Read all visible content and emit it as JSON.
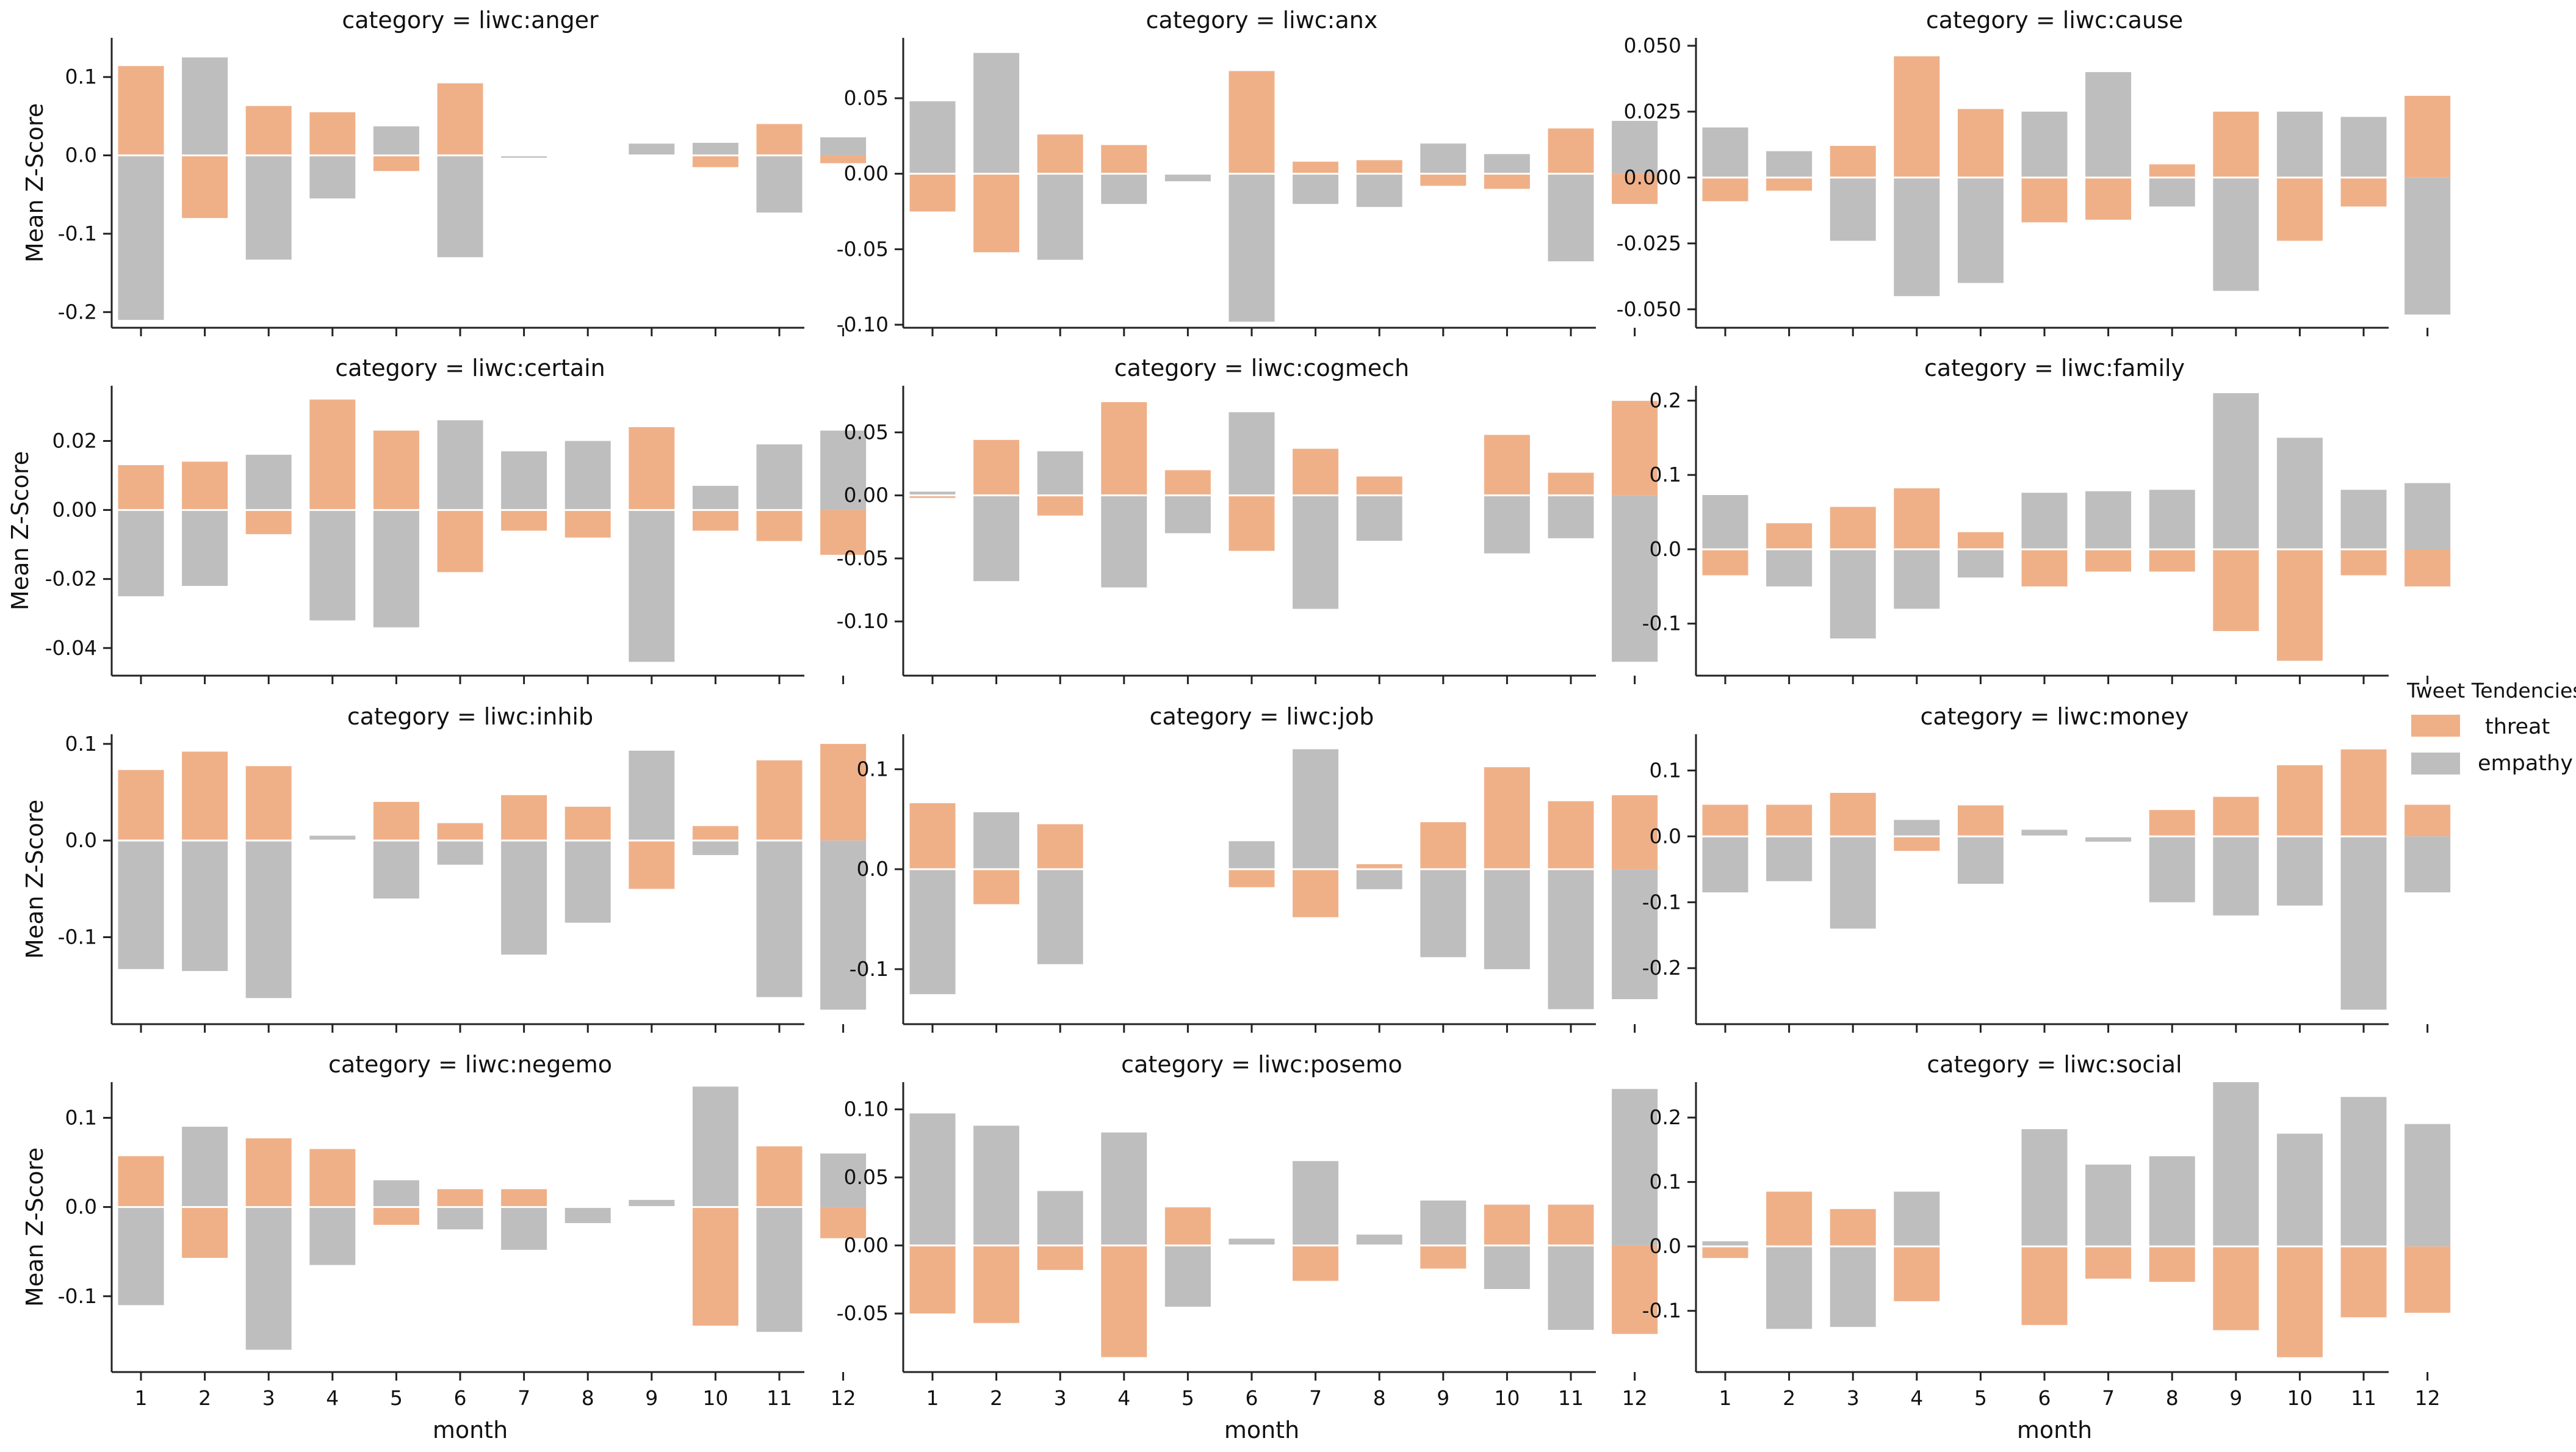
{
  "legend": {
    "title": "Tweet Tendencies",
    "items": [
      {
        "label": "threat",
        "color": "#EFB088"
      },
      {
        "label": "empathy",
        "color": "#BEBEBE"
      }
    ]
  },
  "x_label": "month",
  "y_label": "Mean Z-Score",
  "chart_data": [
    {
      "type": "bar",
      "title": "category = liwc:anger",
      "categories": [
        1,
        2,
        3,
        4,
        5,
        6,
        7,
        8,
        9,
        10,
        11,
        12
      ],
      "ylim": [
        -0.22,
        0.15
      ],
      "yticks": [
        -0.2,
        -0.1,
        0.0,
        0.1
      ],
      "ytick_labels": [
        "-0.2",
        "-0.1",
        "0.0",
        "0.1"
      ],
      "series": [
        {
          "name": "threat",
          "values": [
            0.114,
            -0.08,
            0.063,
            0.055,
            -0.02,
            0.092,
            0,
            0,
            0,
            -0.015,
            0.04,
            -0.01
          ]
        },
        {
          "name": "empathy",
          "values": [
            -0.21,
            0.125,
            -0.133,
            -0.055,
            0.037,
            -0.13,
            -0.003,
            0,
            0.015,
            0.016,
            -0.073,
            0.023
          ]
        }
      ]
    },
    {
      "type": "bar",
      "title": "category = liwc:anx",
      "categories": [
        1,
        2,
        3,
        4,
        5,
        6,
        7,
        8,
        9,
        10,
        11,
        12
      ],
      "ylim": [
        -0.102,
        0.09
      ],
      "yticks": [
        -0.1,
        -0.05,
        0.0,
        0.05
      ],
      "ytick_labels": [
        "-0.10",
        "-0.05",
        "0.00",
        "0.05"
      ],
      "series": [
        {
          "name": "threat",
          "values": [
            -0.025,
            -0.052,
            0.026,
            0.019,
            0,
            0.068,
            0.008,
            0.009,
            -0.008,
            -0.01,
            0.03,
            -0.02
          ]
        },
        {
          "name": "empathy",
          "values": [
            0.048,
            0.08,
            -0.057,
            -0.02,
            -0.005,
            -0.098,
            -0.02,
            -0.022,
            0.02,
            0.013,
            -0.058,
            0.035
          ]
        }
      ]
    },
    {
      "type": "bar",
      "title": "category = liwc:cause",
      "categories": [
        1,
        2,
        3,
        4,
        5,
        6,
        7,
        8,
        9,
        10,
        11,
        12
      ],
      "ylim": [
        -0.057,
        0.053
      ],
      "yticks": [
        -0.05,
        -0.025,
        0.0,
        0.025,
        0.05
      ],
      "ytick_labels": [
        "-0.050",
        "-0.025",
        "0.000",
        "0.025",
        "0.050"
      ],
      "series": [
        {
          "name": "threat",
          "values": [
            -0.009,
            -0.005,
            0.012,
            0.046,
            0.026,
            -0.017,
            -0.016,
            0.005,
            0.025,
            -0.024,
            -0.011,
            0.031
          ]
        },
        {
          "name": "empathy",
          "values": [
            0.019,
            0.01,
            -0.024,
            -0.045,
            -0.04,
            0.025,
            0.04,
            -0.011,
            -0.043,
            0.025,
            0.023,
            -0.052
          ]
        }
      ]
    },
    {
      "type": "bar",
      "title": "category = liwc:certain",
      "categories": [
        1,
        2,
        3,
        4,
        5,
        6,
        7,
        8,
        9,
        10,
        11,
        12
      ],
      "ylim": [
        -0.048,
        0.036
      ],
      "yticks": [
        -0.04,
        -0.02,
        0.0,
        0.02
      ],
      "ytick_labels": [
        "-0.04",
        "-0.02",
        "0.00",
        "0.02"
      ],
      "series": [
        {
          "name": "threat",
          "values": [
            0.013,
            0.014,
            -0.007,
            0.032,
            0.023,
            -0.018,
            -0.006,
            -0.008,
            0.024,
            -0.006,
            -0.009,
            -0.013
          ]
        },
        {
          "name": "empathy",
          "values": [
            -0.025,
            -0.022,
            0.016,
            -0.032,
            -0.034,
            0.026,
            0.017,
            0.02,
            -0.044,
            0.007,
            0.019,
            0.023
          ]
        }
      ]
    },
    {
      "type": "bar",
      "title": "category = liwc:cogmech",
      "categories": [
        1,
        2,
        3,
        4,
        5,
        6,
        7,
        8,
        9,
        10,
        11,
        12
      ],
      "ylim": [
        -0.143,
        0.087
      ],
      "yticks": [
        -0.1,
        -0.05,
        0.0,
        0.05
      ],
      "ytick_labels": [
        "-0.10",
        "-0.05",
        "0.00",
        "0.05"
      ],
      "series": [
        {
          "name": "threat",
          "values": [
            -0.002,
            0.044,
            -0.016,
            0.074,
            0.02,
            -0.044,
            0.037,
            0.015,
            0,
            0.048,
            0.018,
            0.075
          ]
        },
        {
          "name": "empathy",
          "values": [
            0.003,
            -0.068,
            0.035,
            -0.073,
            -0.03,
            0.066,
            -0.09,
            -0.036,
            0,
            -0.046,
            -0.034,
            -0.132
          ]
        }
      ]
    },
    {
      "type": "bar",
      "title": "category = liwc:family",
      "categories": [
        1,
        2,
        3,
        4,
        5,
        6,
        7,
        8,
        9,
        10,
        11,
        12
      ],
      "ylim": [
        -0.17,
        0.22
      ],
      "yticks": [
        -0.1,
        0.0,
        0.1,
        0.2
      ],
      "ytick_labels": [
        "-0.1",
        "0.0",
        "0.1",
        "0.2"
      ],
      "series": [
        {
          "name": "threat",
          "values": [
            -0.035,
            0.035,
            0.057,
            0.082,
            0.023,
            -0.05,
            -0.03,
            -0.03,
            -0.11,
            -0.15,
            -0.035,
            -0.05
          ]
        },
        {
          "name": "empathy",
          "values": [
            0.073,
            -0.05,
            -0.12,
            -0.08,
            -0.038,
            0.076,
            0.078,
            0.08,
            0.21,
            0.15,
            0.08,
            0.089
          ]
        }
      ]
    },
    {
      "type": "bar",
      "title": "category = liwc:inhib",
      "categories": [
        1,
        2,
        3,
        4,
        5,
        6,
        7,
        8,
        9,
        10,
        11,
        12
      ],
      "ylim": [
        -0.19,
        0.11
      ],
      "yticks": [
        -0.1,
        0.0,
        0.1
      ],
      "ytick_labels": [
        "-0.1",
        "0.0",
        "0.1"
      ],
      "series": [
        {
          "name": "threat",
          "values": [
            0.073,
            0.092,
            0.077,
            0,
            0.04,
            0.018,
            0.047,
            0.035,
            -0.05,
            0.015,
            0.083,
            0.1
          ]
        },
        {
          "name": "empathy",
          "values": [
            -0.133,
            -0.135,
            -0.163,
            0.005,
            -0.06,
            -0.025,
            -0.118,
            -0.085,
            0.093,
            -0.015,
            -0.162,
            -0.175
          ]
        }
      ]
    },
    {
      "type": "bar",
      "title": "category = liwc:job",
      "categories": [
        1,
        2,
        3,
        4,
        5,
        6,
        7,
        8,
        9,
        10,
        11,
        12
      ],
      "ylim": [
        -0.155,
        0.135
      ],
      "yticks": [
        -0.1,
        0.0,
        0.1
      ],
      "ytick_labels": [
        "-0.1",
        "0.0",
        "0.1"
      ],
      "series": [
        {
          "name": "threat",
          "values": [
            0.066,
            -0.035,
            0.045,
            0,
            0,
            -0.018,
            -0.048,
            0.005,
            0.047,
            0.102,
            0.068,
            0.074
          ]
        },
        {
          "name": "empathy",
          "values": [
            -0.125,
            0.057,
            -0.095,
            0,
            0,
            0.028,
            0.12,
            -0.02,
            -0.088,
            -0.1,
            -0.14,
            -0.13
          ]
        }
      ]
    },
    {
      "type": "bar",
      "title": "category = liwc:money",
      "categories": [
        1,
        2,
        3,
        4,
        5,
        6,
        7,
        8,
        9,
        10,
        11,
        12
      ],
      "ylim": [
        -0.285,
        0.155
      ],
      "yticks": [
        -0.2,
        -0.1,
        0.0,
        0.1
      ],
      "ytick_labels": [
        "-0.2",
        "-0.1",
        "0.0",
        "0.1"
      ],
      "series": [
        {
          "name": "threat",
          "values": [
            0.048,
            0.048,
            0.066,
            -0.022,
            0.047,
            0,
            0,
            0.04,
            0.06,
            0.108,
            0.132,
            0.048
          ]
        },
        {
          "name": "empathy",
          "values": [
            -0.085,
            -0.068,
            -0.14,
            0.025,
            -0.072,
            0.01,
            -0.008,
            -0.1,
            -0.12,
            -0.105,
            -0.263,
            -0.085
          ]
        }
      ]
    },
    {
      "type": "bar",
      "title": "category = liwc:negemo",
      "categories": [
        1,
        2,
        3,
        4,
        5,
        6,
        7,
        8,
        9,
        10,
        11,
        12
      ],
      "ylim": [
        -0.185,
        0.14
      ],
      "yticks": [
        -0.1,
        0.0,
        0.1
      ],
      "ytick_labels": [
        "-0.1",
        "0.0",
        "0.1"
      ],
      "series": [
        {
          "name": "threat",
          "values": [
            0.057,
            -0.057,
            0.077,
            0.065,
            -0.02,
            0.02,
            0.02,
            0,
            0,
            -0.133,
            0.068,
            -0.035
          ]
        },
        {
          "name": "empathy",
          "values": [
            -0.11,
            0.09,
            -0.16,
            -0.065,
            0.03,
            -0.025,
            -0.048,
            -0.018,
            0.008,
            0.135,
            -0.14,
            0.06
          ]
        }
      ]
    },
    {
      "type": "bar",
      "title": "category = liwc:posemo",
      "categories": [
        1,
        2,
        3,
        4,
        5,
        6,
        7,
        8,
        9,
        10,
        11,
        12
      ],
      "ylim": [
        -0.093,
        0.12
      ],
      "yticks": [
        -0.05,
        0.0,
        0.05,
        0.1
      ],
      "ytick_labels": [
        "-0.05",
        "0.00",
        "0.05",
        "0.10"
      ],
      "series": [
        {
          "name": "threat",
          "values": [
            -0.05,
            -0.057,
            -0.018,
            -0.082,
            0.028,
            0,
            -0.026,
            0,
            -0.017,
            0.03,
            0.03,
            -0.065
          ]
        },
        {
          "name": "empathy",
          "values": [
            0.097,
            0.088,
            0.04,
            0.083,
            -0.045,
            0.005,
            0.062,
            0.008,
            0.033,
            -0.032,
            -0.062,
            0.115
          ]
        }
      ]
    },
    {
      "type": "bar",
      "title": "category = liwc:social",
      "categories": [
        1,
        2,
        3,
        4,
        5,
        6,
        7,
        8,
        9,
        10,
        11,
        12
      ],
      "ylim": [
        -0.195,
        0.255
      ],
      "yticks": [
        -0.1,
        0.0,
        0.1,
        0.2
      ],
      "ytick_labels": [
        "-0.1",
        "0.0",
        "0.1",
        "0.2"
      ],
      "series": [
        {
          "name": "threat",
          "values": [
            -0.018,
            0.085,
            0.058,
            -0.085,
            0,
            -0.122,
            -0.05,
            -0.055,
            -0.13,
            -0.172,
            -0.11,
            -0.103
          ]
        },
        {
          "name": "empathy",
          "values": [
            0.008,
            -0.128,
            -0.125,
            0.085,
            0,
            0.182,
            0.127,
            0.14,
            0.255,
            0.175,
            0.232,
            0.19
          ]
        }
      ]
    }
  ]
}
